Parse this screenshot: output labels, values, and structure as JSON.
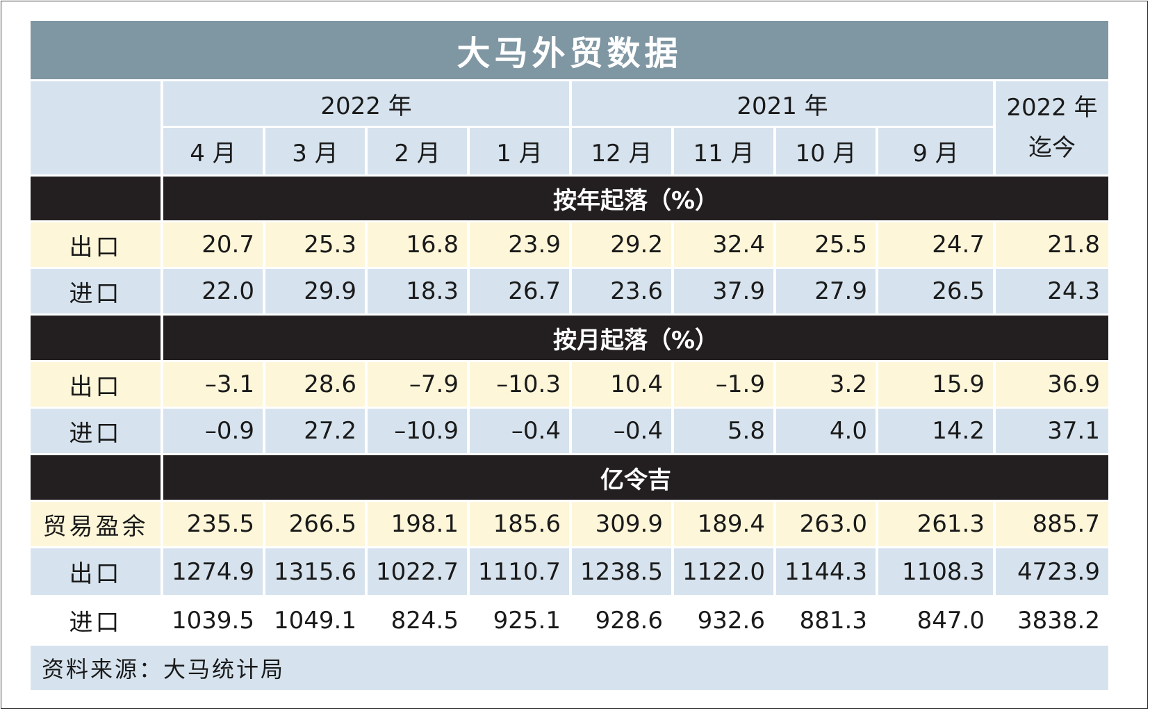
{
  "title": "大马外贸数据",
  "source": "资料来源：大马统计局",
  "chart_data": {
    "type": "table",
    "title": "大马外贸数据",
    "year_groups": [
      {
        "label": "2022 年",
        "span": 4
      },
      {
        "label": "2021 年",
        "span": 4
      }
    ],
    "ytd_label": {
      "line1": "2022 年",
      "line2": "迄今"
    },
    "columns": [
      "4 月",
      "3 月",
      "2 月",
      "1 月",
      "12 月",
      "11 月",
      "10 月",
      "9 月"
    ],
    "sections": [
      {
        "heading": "按年起落（%）",
        "rows": [
          {
            "label": "出口",
            "values": [
              "20.7",
              "25.3",
              "16.8",
              "23.9",
              "29.2",
              "32.4",
              "25.5",
              "24.7"
            ],
            "ytd": "21.8"
          },
          {
            "label": "进口",
            "values": [
              "22.0",
              "29.9",
              "18.3",
              "26.7",
              "23.6",
              "37.9",
              "27.9",
              "26.5"
            ],
            "ytd": "24.3"
          }
        ]
      },
      {
        "heading": "按月起落（%）",
        "rows": [
          {
            "label": "出口",
            "values": [
              "–3.1",
              "28.6",
              "–7.9",
              "–10.3",
              "10.4",
              "–1.9",
              "3.2",
              "15.9"
            ],
            "ytd": "36.9"
          },
          {
            "label": "进口",
            "values": [
              "–0.9",
              "27.2",
              "–10.9",
              "–0.4",
              "–0.4",
              "5.8",
              "4.0",
              "14.2"
            ],
            "ytd": "37.1"
          }
        ]
      },
      {
        "heading": "亿令吉",
        "rows": [
          {
            "label": "贸易盈余",
            "values": [
              "235.5",
              "266.5",
              "198.1",
              "185.6",
              "309.9",
              "189.4",
              "263.0",
              "261.3"
            ],
            "ytd": "885.7"
          },
          {
            "label": "出口",
            "values": [
              "1274.9",
              "1315.6",
              "1022.7",
              "1110.7",
              "1238.5",
              "1122.0",
              "1144.3",
              "1108.3"
            ],
            "ytd": "4723.9"
          },
          {
            "label": "进口",
            "values": [
              "1039.5",
              "1049.1",
              "824.5",
              "925.1",
              "928.6",
              "932.6",
              "881.3",
              "847.0"
            ],
            "ytd": "3838.2"
          }
        ]
      }
    ]
  },
  "colors": {
    "title_bg": "#7f96a3",
    "header_bg": "#d6e3ee",
    "highlight_row_bg": "#fdf6d9",
    "section_bg": "#231f20"
  }
}
